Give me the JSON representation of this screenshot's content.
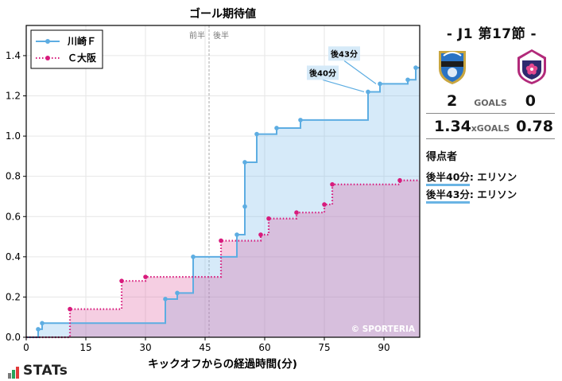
{
  "chart_data": {
    "type": "line",
    "title": "ゴール期待値",
    "xlabel": "キックオフからの経過時間(分)",
    "ylabel": "",
    "xlim": [
      0,
      99
    ],
    "ylim": [
      0,
      1.55
    ],
    "xticks": [
      0,
      15,
      30,
      45,
      60,
      75,
      90
    ],
    "yticks": [
      0.0,
      0.2,
      0.4,
      0.6,
      0.8,
      1.0,
      1.2,
      1.4
    ],
    "halftime_minute": 46,
    "halftime_labels": [
      "前半",
      "後半"
    ],
    "legend_position": "top-left",
    "watermark": "© SPORTERIA",
    "series": [
      {
        "name": "川崎Ｆ",
        "color": "#5dade2",
        "line_style": "solid",
        "points": [
          [
            3,
            0.04
          ],
          [
            4,
            0.07
          ],
          [
            35,
            0.19
          ],
          [
            38,
            0.22
          ],
          [
            42,
            0.4
          ],
          [
            53,
            0.51
          ],
          [
            55,
            0.65
          ],
          [
            55,
            0.87
          ],
          [
            58,
            1.01
          ],
          [
            63,
            1.04
          ],
          [
            69,
            1.08
          ],
          [
            86,
            1.22
          ],
          [
            89,
            1.26
          ],
          [
            96,
            1.28
          ],
          [
            98,
            1.34
          ]
        ]
      },
      {
        "name": "Ｃ大阪",
        "color": "#d81b7c",
        "line_style": "dotted",
        "points": [
          [
            11,
            0.14
          ],
          [
            24,
            0.28
          ],
          [
            30,
            0.3
          ],
          [
            49,
            0.48
          ],
          [
            59,
            0.51
          ],
          [
            61,
            0.59
          ],
          [
            68,
            0.62
          ],
          [
            75,
            0.66
          ],
          [
            77,
            0.76
          ],
          [
            94,
            0.78
          ]
        ]
      }
    ],
    "annotations": [
      {
        "text": "後43分",
        "x": 88,
        "y": 1.26
      },
      {
        "text": "後40分",
        "x": 85,
        "y": 1.22
      }
    ]
  },
  "match": {
    "title": "- J1 第17節 -",
    "home_crest": "kawasaki-frontale-crest",
    "away_crest": "cerezo-osaka-crest",
    "goals": {
      "home": "2",
      "label": "GOALS",
      "away": "0"
    },
    "xgoals": {
      "home": "1.34",
      "label": "xGOALS",
      "away": "0.78"
    }
  },
  "scorers": {
    "title": "得点者",
    "items": [
      {
        "minute": "後半40分",
        "name": ": エリソン"
      },
      {
        "minute": "後半43分",
        "name": ": エリソン"
      }
    ]
  },
  "brand": {
    "name": "STATs"
  }
}
